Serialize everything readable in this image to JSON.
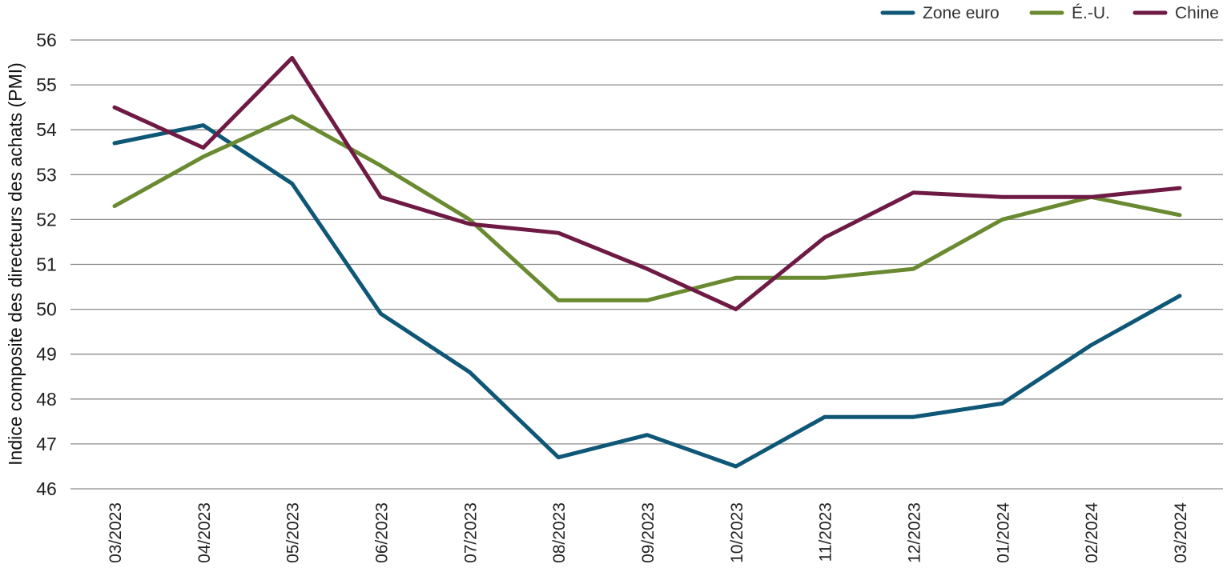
{
  "chart_data": {
    "type": "line",
    "title": "",
    "xlabel": "",
    "ylabel": "Indice composite des directeurs des achats (PMI)",
    "ylim": [
      46,
      56
    ],
    "yticks": [
      "46",
      "47",
      "48",
      "49",
      "50",
      "51",
      "52",
      "53",
      "54",
      "55",
      "56"
    ],
    "grid": true,
    "legend_position": "top-right",
    "categories": [
      "03/2023",
      "04/2023",
      "05/2023",
      "06/2023",
      "07/2023",
      "08/2023",
      "09/2023",
      "10/2023",
      "11/2023",
      "12/2023",
      "01/2024",
      "02/2024",
      "03/2024"
    ],
    "series": [
      {
        "name": "Zone euro",
        "color": "#0e5776",
        "values": [
          53.7,
          54.1,
          52.8,
          49.9,
          48.6,
          46.7,
          47.2,
          46.5,
          47.6,
          47.6,
          47.9,
          49.2,
          50.3
        ]
      },
      {
        "name": "É.-U.",
        "color": "#6a8a31",
        "values": [
          52.3,
          53.4,
          54.3,
          53.2,
          52.0,
          50.2,
          50.2,
          50.7,
          50.7,
          50.9,
          52.0,
          52.5,
          52.1
        ]
      },
      {
        "name": "Chine",
        "color": "#6e1a45",
        "values": [
          54.5,
          53.6,
          55.6,
          52.5,
          51.9,
          51.7,
          50.9,
          50.0,
          51.6,
          52.6,
          52.5,
          52.5,
          52.7
        ]
      }
    ]
  }
}
